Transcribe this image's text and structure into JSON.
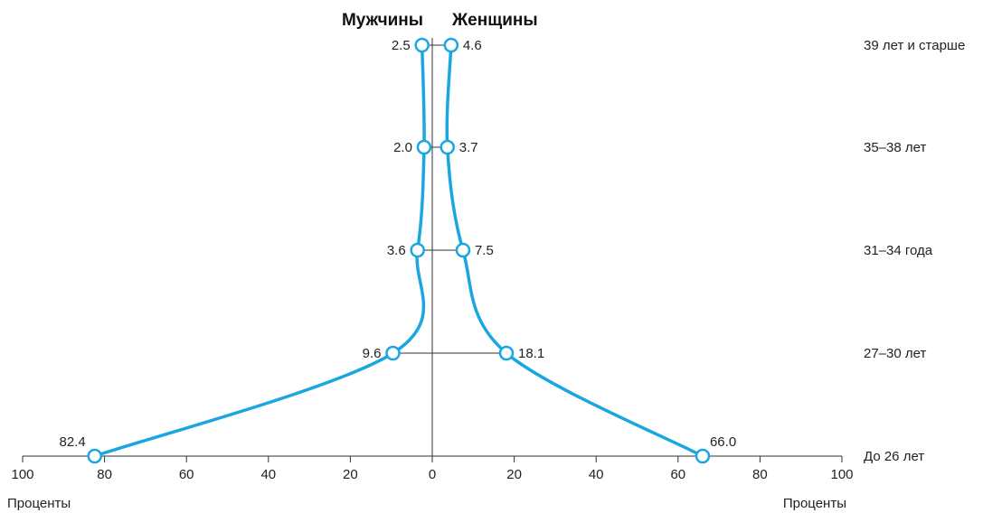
{
  "chart_data": {
    "type": "line",
    "categories": [
      "До 26 лет",
      "27–30 лет",
      "31–34 года",
      "35–38 лет",
      "39 лет и старше"
    ],
    "series": [
      {
        "name": "Мужчины",
        "side": "left",
        "values": [
          82.4,
          9.6,
          3.6,
          2.0,
          2.5
        ],
        "labels": [
          "82.4",
          "9.6",
          "3.6",
          "2.0",
          "2.5"
        ]
      },
      {
        "name": "Женщины",
        "side": "right",
        "values": [
          66.0,
          18.1,
          7.5,
          3.7,
          4.6
        ],
        "labels": [
          "66.0",
          "18.1",
          "7.5",
          "3.7",
          "4.6"
        ]
      }
    ],
    "xlim": [
      -100,
      100
    ],
    "x_ticks": [
      -100,
      -80,
      -60,
      -40,
      -20,
      0,
      20,
      40,
      60,
      80,
      100
    ],
    "x_tick_labels": [
      "100",
      "80",
      "60",
      "40",
      "20",
      "0",
      "20",
      "40",
      "60",
      "80",
      "100"
    ],
    "xlabel_left": "Проценты",
    "xlabel_right": "Проценты",
    "line_color": "#1aa7e0",
    "marker_fill": "#ffffff",
    "axis_color": "#333333"
  }
}
